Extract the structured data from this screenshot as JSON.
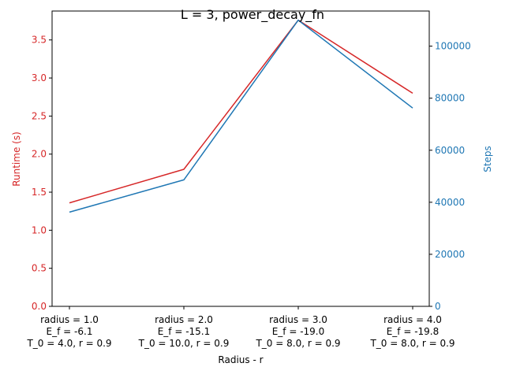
{
  "chart_data": {
    "type": "line",
    "title": "L = 3, power_decay_fn",
    "xlabel": "Radius - r",
    "categories": [
      [
        "radius = 1.0",
        "E_f = -6.1",
        "T_0 = 4.0, r = 0.9"
      ],
      [
        "radius = 2.0",
        "E_f = -15.1",
        "T_0 = 10.0, r = 0.9"
      ],
      [
        "radius = 3.0",
        "E_f = -19.0",
        "T_0 = 8.0, r = 0.9"
      ],
      [
        "radius = 4.0",
        "E_f = -19.8",
        "T_0 = 8.0, r = 0.9"
      ]
    ],
    "left_axis": {
      "label": "Runtime (s)",
      "color": "#d62728",
      "ylim": [
        0,
        3.88
      ],
      "ticks": [
        "0.0",
        "0.5",
        "1.0",
        "1.5",
        "2.0",
        "2.5",
        "3.0",
        "3.5"
      ],
      "tick_values": [
        0,
        0.5,
        1.0,
        1.5,
        2.0,
        2.5,
        3.0,
        3.5
      ]
    },
    "right_axis": {
      "label": "Steps",
      "color": "#1f77b4",
      "ylim": [
        0,
        113500
      ],
      "ticks": [
        "0",
        "20000",
        "40000",
        "60000",
        "80000",
        "100000"
      ],
      "tick_values": [
        0,
        20000,
        40000,
        60000,
        80000,
        100000
      ]
    },
    "series": [
      {
        "axis": "left",
        "color": "#d62728",
        "values": [
          1.36,
          1.8,
          3.76,
          2.8
        ]
      },
      {
        "axis": "right",
        "color": "#1f77b4",
        "values": [
          36200,
          48600,
          110000,
          76200
        ]
      }
    ]
  }
}
